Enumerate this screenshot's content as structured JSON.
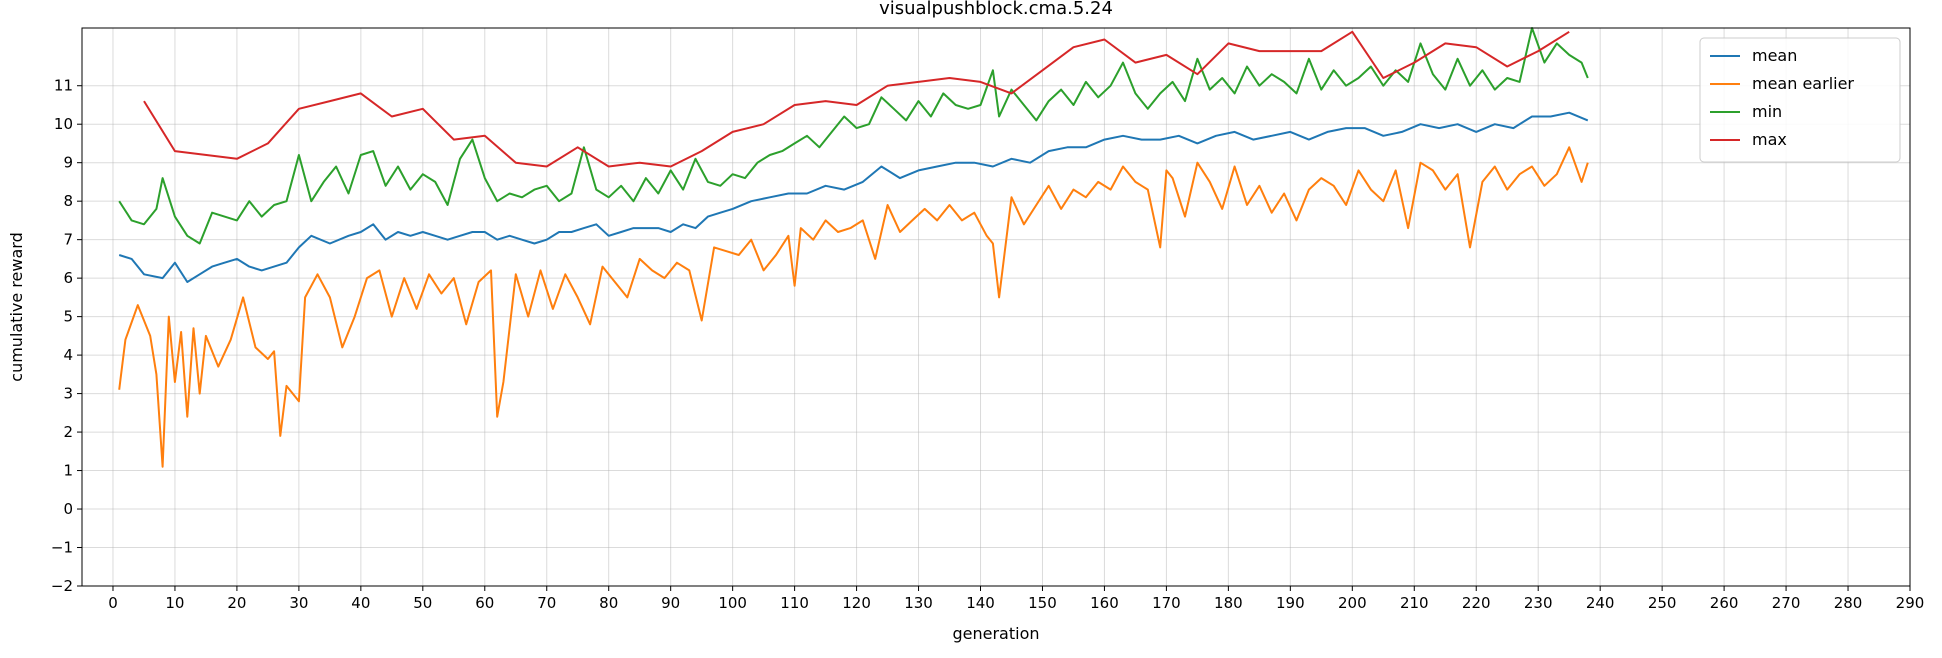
{
  "chart_data": {
    "type": "line",
    "title": "visualpushblock.cma.5.24",
    "xlabel": "generation",
    "ylabel": "cumulative reward",
    "xlim": [
      -5,
      290
    ],
    "ylim": [
      -2,
      12.5
    ],
    "xticks": [
      0,
      10,
      20,
      30,
      40,
      50,
      60,
      70,
      80,
      90,
      100,
      110,
      120,
      130,
      140,
      150,
      160,
      170,
      180,
      190,
      200,
      210,
      220,
      230,
      240,
      250,
      260,
      270,
      280,
      290
    ],
    "yticks": [
      -2,
      -1,
      0,
      1,
      2,
      3,
      4,
      5,
      6,
      7,
      8,
      9,
      10,
      11
    ],
    "grid": true,
    "legend_position": "top-right",
    "series": [
      {
        "name": "mean",
        "color": "#1f77b4",
        "x": [
          1,
          3,
          5,
          8,
          10,
          12,
          14,
          16,
          18,
          20,
          22,
          24,
          26,
          28,
          30,
          32,
          35,
          38,
          40,
          42,
          44,
          46,
          48,
          50,
          52,
          54,
          56,
          58,
          60,
          62,
          64,
          66,
          68,
          70,
          72,
          74,
          76,
          78,
          80,
          82,
          84,
          86,
          88,
          90,
          92,
          94,
          96,
          98,
          100,
          103,
          106,
          109,
          112,
          115,
          118,
          121,
          124,
          127,
          130,
          133,
          136,
          139,
          142,
          145,
          148,
          151,
          154,
          157,
          160,
          163,
          166,
          169,
          172,
          175,
          178,
          181,
          184,
          187,
          190,
          193,
          196,
          199,
          202,
          205,
          208,
          211,
          214,
          217,
          220,
          223,
          226,
          229,
          232,
          235,
          238
        ],
        "y": [
          6.6,
          6.5,
          6.1,
          6.0,
          6.4,
          5.9,
          6.1,
          6.3,
          6.4,
          6.5,
          6.3,
          6.2,
          6.3,
          6.4,
          6.8,
          7.1,
          6.9,
          7.1,
          7.2,
          7.4,
          7.0,
          7.2,
          7.1,
          7.2,
          7.1,
          7.0,
          7.1,
          7.2,
          7.2,
          7.0,
          7.1,
          7.0,
          6.9,
          7.0,
          7.2,
          7.2,
          7.3,
          7.4,
          7.1,
          7.2,
          7.3,
          7.3,
          7.3,
          7.2,
          7.4,
          7.3,
          7.6,
          7.7,
          7.8,
          8.0,
          8.1,
          8.2,
          8.2,
          8.4,
          8.3,
          8.5,
          8.9,
          8.6,
          8.8,
          8.9,
          9.0,
          9.0,
          8.9,
          9.1,
          9.0,
          9.3,
          9.4,
          9.4,
          9.6,
          9.7,
          9.6,
          9.6,
          9.7,
          9.5,
          9.7,
          9.8,
          9.6,
          9.7,
          9.8,
          9.6,
          9.8,
          9.9,
          9.9,
          9.7,
          9.8,
          10.0,
          9.9,
          10.0,
          9.8,
          10.0,
          9.9,
          10.2,
          10.2,
          10.3,
          10.1
        ]
      },
      {
        "name": "mean earlier",
        "color": "#ff7f0e",
        "x": [
          1,
          2,
          4,
          6,
          7,
          8,
          9,
          10,
          11,
          12,
          13,
          14,
          15,
          17,
          19,
          21,
          23,
          25,
          26,
          27,
          28,
          30,
          31,
          33,
          35,
          37,
          39,
          41,
          43,
          45,
          47,
          49,
          51,
          53,
          55,
          57,
          59,
          61,
          62,
          63,
          65,
          67,
          69,
          71,
          73,
          75,
          77,
          79,
          81,
          83,
          85,
          87,
          89,
          91,
          93,
          95,
          97,
          99,
          101,
          103,
          105,
          107,
          109,
          110,
          111,
          113,
          115,
          117,
          119,
          121,
          123,
          125,
          127,
          129,
          131,
          133,
          135,
          137,
          139,
          141,
          142,
          143,
          145,
          147,
          149,
          151,
          153,
          155,
          157,
          159,
          161,
          163,
          165,
          167,
          169,
          170,
          171,
          173,
          175,
          177,
          179,
          181,
          183,
          185,
          187,
          189,
          191,
          193,
          195,
          197,
          199,
          201,
          203,
          205,
          207,
          209,
          211,
          213,
          215,
          217,
          219,
          221,
          223,
          225,
          227,
          229,
          231,
          233,
          235,
          237,
          238
        ],
        "y": [
          3.1,
          4.4,
          5.3,
          4.5,
          3.5,
          1.1,
          5.0,
          3.3,
          4.6,
          2.4,
          4.7,
          3.0,
          4.5,
          3.7,
          4.4,
          5.5,
          4.2,
          3.9,
          4.1,
          1.9,
          3.2,
          2.8,
          5.5,
          6.1,
          5.5,
          4.2,
          5.0,
          6.0,
          6.2,
          5.0,
          6.0,
          5.2,
          6.1,
          5.6,
          6.0,
          4.8,
          5.9,
          6.2,
          2.4,
          3.3,
          6.1,
          5.0,
          6.2,
          5.2,
          6.1,
          5.5,
          4.8,
          6.3,
          5.9,
          5.5,
          6.5,
          6.2,
          6.0,
          6.4,
          6.2,
          4.9,
          6.8,
          6.7,
          6.6,
          7.0,
          6.2,
          6.6,
          7.1,
          5.8,
          7.3,
          7.0,
          7.5,
          7.2,
          7.3,
          7.5,
          6.5,
          7.9,
          7.2,
          7.5,
          7.8,
          7.5,
          7.9,
          7.5,
          7.7,
          7.1,
          6.9,
          5.5,
          8.1,
          7.4,
          7.9,
          8.4,
          7.8,
          8.3,
          8.1,
          8.5,
          8.3,
          8.9,
          8.5,
          8.3,
          6.8,
          8.8,
          8.6,
          7.6,
          9.0,
          8.5,
          7.8,
          8.9,
          7.9,
          8.4,
          7.7,
          8.2,
          7.5,
          8.3,
          8.6,
          8.4,
          7.9,
          8.8,
          8.3,
          8.0,
          8.8,
          7.3,
          9.0,
          8.8,
          8.3,
          8.7,
          6.8,
          8.5,
          8.9,
          8.3,
          8.7,
          8.9,
          8.4,
          8.7,
          9.4,
          8.5,
          9.0
        ]
      },
      {
        "name": "min",
        "color": "#2ca02c",
        "x": [
          1,
          3,
          5,
          7,
          8,
          10,
          12,
          14,
          16,
          18,
          20,
          22,
          24,
          26,
          28,
          30,
          32,
          34,
          36,
          38,
          40,
          42,
          44,
          46,
          48,
          50,
          52,
          54,
          56,
          58,
          60,
          62,
          64,
          66,
          68,
          70,
          72,
          74,
          76,
          78,
          80,
          82,
          84,
          86,
          88,
          90,
          92,
          94,
          96,
          98,
          100,
          102,
          104,
          106,
          108,
          110,
          112,
          114,
          116,
          118,
          120,
          122,
          124,
          126,
          128,
          130,
          132,
          134,
          136,
          138,
          140,
          142,
          143,
          145,
          147,
          149,
          151,
          153,
          155,
          157,
          159,
          161,
          163,
          165,
          167,
          169,
          171,
          173,
          175,
          177,
          179,
          181,
          183,
          185,
          187,
          189,
          191,
          193,
          195,
          197,
          199,
          201,
          203,
          205,
          207,
          209,
          211,
          213,
          215,
          217,
          219,
          221,
          223,
          225,
          227,
          229,
          231,
          233,
          235,
          237,
          238
        ],
        "y": [
          8.0,
          7.5,
          7.4,
          7.8,
          8.6,
          7.6,
          7.1,
          6.9,
          7.7,
          7.6,
          7.5,
          8.0,
          7.6,
          7.9,
          8.0,
          9.2,
          8.0,
          8.5,
          8.9,
          8.2,
          9.2,
          9.3,
          8.4,
          8.9,
          8.3,
          8.7,
          8.5,
          7.9,
          9.1,
          9.6,
          8.6,
          8.0,
          8.2,
          8.1,
          8.3,
          8.4,
          8.0,
          8.2,
          9.4,
          8.3,
          8.1,
          8.4,
          8.0,
          8.6,
          8.2,
          8.8,
          8.3,
          9.1,
          8.5,
          8.4,
          8.7,
          8.6,
          9.0,
          9.2,
          9.3,
          9.5,
          9.7,
          9.4,
          9.8,
          10.2,
          9.9,
          10.0,
          10.7,
          10.4,
          10.1,
          10.6,
          10.2,
          10.8,
          10.5,
          10.4,
          10.5,
          11.4,
          10.2,
          10.9,
          10.5,
          10.1,
          10.6,
          10.9,
          10.5,
          11.1,
          10.7,
          11.0,
          11.6,
          10.8,
          10.4,
          10.8,
          11.1,
          10.6,
          11.7,
          10.9,
          11.2,
          10.8,
          11.5,
          11.0,
          11.3,
          11.1,
          10.8,
          11.7,
          10.9,
          11.4,
          11.0,
          11.2,
          11.5,
          11.0,
          11.4,
          11.1,
          12.1,
          11.3,
          10.9,
          11.7,
          11.0,
          11.4,
          10.9,
          11.2,
          11.1,
          12.5,
          11.6,
          12.1,
          11.8,
          11.6,
          11.2
        ]
      },
      {
        "name": "max",
        "color": "#d62728",
        "x": [
          5,
          10,
          20,
          25,
          30,
          35,
          40,
          45,
          50,
          55,
          60,
          65,
          70,
          75,
          80,
          85,
          90,
          95,
          100,
          105,
          110,
          115,
          120,
          125,
          130,
          135,
          140,
          145,
          150,
          155,
          160,
          165,
          170,
          175,
          180,
          185,
          190,
          195,
          200,
          205,
          210,
          215,
          220,
          225,
          230,
          235
        ],
        "y": [
          10.6,
          9.3,
          9.1,
          9.5,
          10.4,
          10.6,
          10.8,
          10.2,
          10.4,
          9.6,
          9.7,
          9.0,
          8.9,
          9.4,
          8.9,
          9.0,
          8.9,
          9.3,
          9.8,
          10.0,
          10.5,
          10.6,
          10.5,
          11.0,
          11.1,
          11.2,
          11.1,
          10.8,
          11.4,
          12.0,
          12.2,
          11.6,
          11.8,
          11.3,
          12.1,
          11.9,
          11.9,
          11.9,
          12.4,
          11.2,
          11.6,
          12.1,
          12.0,
          11.5,
          11.9,
          12.4
        ]
      }
    ]
  }
}
